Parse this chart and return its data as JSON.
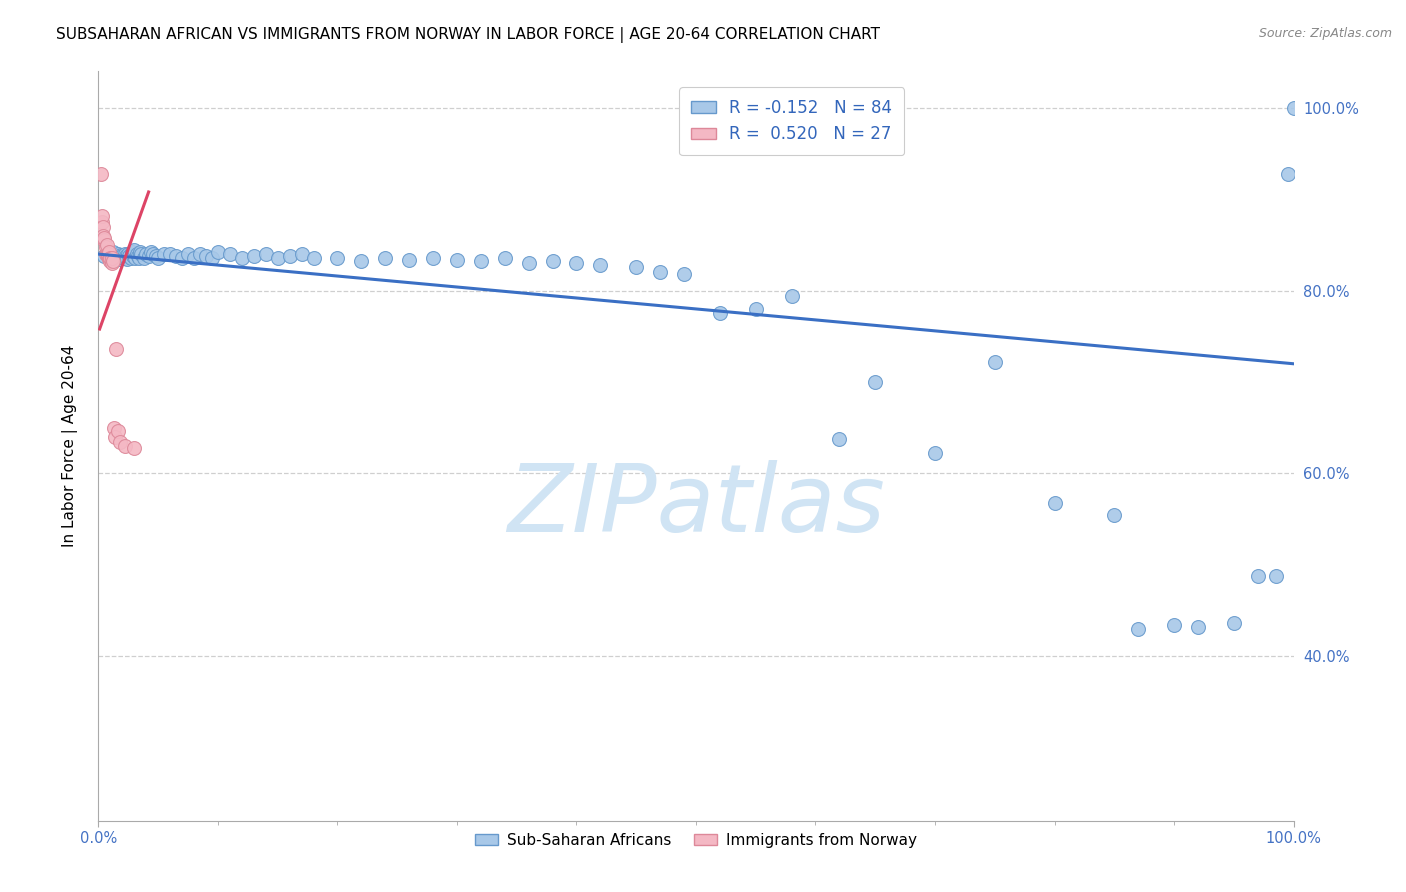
{
  "title": "SUBSAHARAN AFRICAN VS IMMIGRANTS FROM NORWAY IN LABOR FORCE | AGE 20-64 CORRELATION CHART",
  "source": "Source: ZipAtlas.com",
  "ylabel": "In Labor Force | Age 20-64",
  "xlim": [
    0.0,
    1.0
  ],
  "ylim": [
    0.22,
    1.04
  ],
  "ytick_labels": [
    "40.0%",
    "60.0%",
    "80.0%",
    "100.0%"
  ],
  "ytick_values": [
    0.4,
    0.6,
    0.8,
    1.0
  ],
  "xtick_values": [
    0.0,
    1.0
  ],
  "xtick_labels": [
    "0.0%",
    "100.0%"
  ],
  "legend_r1": "R = -0.152   N = 84",
  "legend_r2": "R =  0.520   N = 27",
  "legend_label1": "Sub-Saharan Africans",
  "legend_label2": "Immigrants from Norway",
  "blue_color": "#a8c8e8",
  "blue_edge": "#6699cc",
  "pink_color": "#f4b8c4",
  "pink_edge": "#dd8899",
  "blue_trend_color": "#3a6fc4",
  "pink_trend_color": "#dd4466",
  "watermark": "ZIPatlas",
  "watermark_color": "#d0e4f4",
  "blue_scatter_x": [
    0.005,
    0.008,
    0.01,
    0.012,
    0.014,
    0.015,
    0.016,
    0.017,
    0.018,
    0.019,
    0.02,
    0.021,
    0.022,
    0.023,
    0.024,
    0.025,
    0.026,
    0.027,
    0.028,
    0.029,
    0.03,
    0.031,
    0.032,
    0.033,
    0.034,
    0.035,
    0.036,
    0.038,
    0.04,
    0.042,
    0.044,
    0.046,
    0.048,
    0.05,
    0.055,
    0.06,
    0.065,
    0.07,
    0.075,
    0.08,
    0.085,
    0.09,
    0.095,
    0.1,
    0.11,
    0.12,
    0.13,
    0.14,
    0.15,
    0.16,
    0.17,
    0.18,
    0.2,
    0.22,
    0.24,
    0.26,
    0.28,
    0.3,
    0.32,
    0.34,
    0.36,
    0.38,
    0.4,
    0.42,
    0.45,
    0.47,
    0.49,
    0.52,
    0.55,
    0.58,
    0.62,
    0.65,
    0.7,
    0.75,
    0.8,
    0.85,
    0.87,
    0.9,
    0.92,
    0.95,
    0.97,
    0.985,
    0.995,
    1.0
  ],
  "blue_scatter_y": [
    0.838,
    0.84,
    0.835,
    0.842,
    0.838,
    0.836,
    0.84,
    0.835,
    0.837,
    0.839,
    0.838,
    0.836,
    0.84,
    0.838,
    0.835,
    0.84,
    0.838,
    0.836,
    0.842,
    0.838,
    0.844,
    0.836,
    0.84,
    0.838,
    0.836,
    0.842,
    0.84,
    0.836,
    0.84,
    0.838,
    0.842,
    0.84,
    0.838,
    0.836,
    0.84,
    0.84,
    0.838,
    0.836,
    0.84,
    0.836,
    0.84,
    0.838,
    0.836,
    0.842,
    0.84,
    0.836,
    0.838,
    0.84,
    0.836,
    0.838,
    0.84,
    0.836,
    0.836,
    0.832,
    0.836,
    0.834,
    0.836,
    0.834,
    0.832,
    0.836,
    0.83,
    0.832,
    0.83,
    0.828,
    0.826,
    0.82,
    0.818,
    0.776,
    0.78,
    0.794,
    0.638,
    0.7,
    0.622,
    0.722,
    0.568,
    0.554,
    0.43,
    0.434,
    0.432,
    0.436,
    0.488,
    0.488,
    0.928,
    1.0
  ],
  "pink_scatter_x": [
    0.002,
    0.003,
    0.003,
    0.004,
    0.004,
    0.005,
    0.005,
    0.006,
    0.006,
    0.007,
    0.007,
    0.008,
    0.008,
    0.009,
    0.009,
    0.01,
    0.01,
    0.011,
    0.011,
    0.012,
    0.013,
    0.014,
    0.015,
    0.016,
    0.018,
    0.022,
    0.03
  ],
  "pink_scatter_y": [
    0.928,
    0.875,
    0.882,
    0.87,
    0.86,
    0.855,
    0.858,
    0.84,
    0.848,
    0.84,
    0.85,
    0.838,
    0.84,
    0.835,
    0.842,
    0.832,
    0.836,
    0.83,
    0.836,
    0.832,
    0.65,
    0.64,
    0.736,
    0.646,
    0.634,
    0.63,
    0.628
  ],
  "blue_trend_x0": 0.0,
  "blue_trend_x1": 1.0,
  "blue_trend_y0": 0.84,
  "blue_trend_y1": 0.72,
  "pink_trend_x0": 0.001,
  "pink_trend_x1": 0.042,
  "pink_trend_y0": 0.758,
  "pink_trend_y1": 0.908,
  "grid_color": "#bbbbbb",
  "grid_style": "--",
  "background_color": "#ffffff",
  "title_fontsize": 11,
  "source_fontsize": 9,
  "ylabel_fontsize": 11,
  "tick_fontsize": 10.5,
  "blue_label_color": "#3366bb",
  "right_tick_color": "#4472c4"
}
